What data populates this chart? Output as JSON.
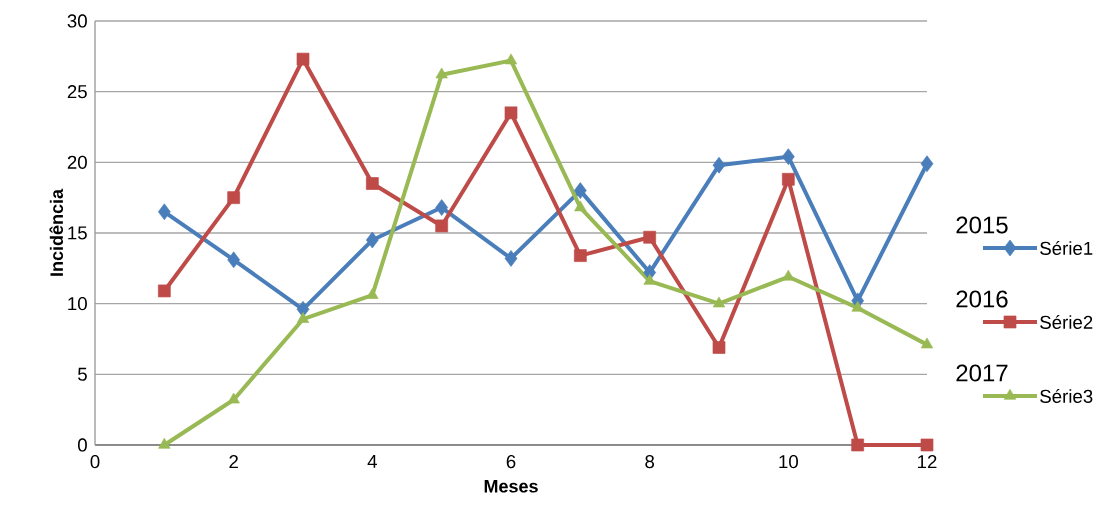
{
  "chart_data": {
    "type": "line",
    "xlabel": "Meses",
    "ylabel": "Incidência",
    "x": [
      1,
      2,
      3,
      4,
      5,
      6,
      7,
      8,
      9,
      10,
      11,
      12
    ],
    "xlim": [
      0,
      12
    ],
    "xticks": [
      0,
      2,
      4,
      6,
      8,
      10,
      12
    ],
    "ylim": [
      0,
      30
    ],
    "yticks": [
      0,
      5,
      10,
      15,
      20,
      25,
      30
    ],
    "grid": "y",
    "legend": "right",
    "line_style": "solid",
    "annotations": [
      "2015",
      "2016",
      "2017"
    ],
    "series": [
      {
        "name": "Série1",
        "color": "#4a7ebb",
        "marker": "diamond",
        "values": [
          16.5,
          13.1,
          9.6,
          14.5,
          16.8,
          13.2,
          18.0,
          12.2,
          19.8,
          20.4,
          10.2,
          19.9
        ]
      },
      {
        "name": "Série2",
        "color": "#be4b48",
        "marker": "square",
        "values": [
          10.9,
          17.5,
          27.3,
          18.5,
          15.5,
          23.5,
          13.4,
          14.7,
          6.9,
          18.8,
          0,
          0
        ]
      },
      {
        "name": "Série3",
        "color": "#98b954",
        "marker": "triangle",
        "values": [
          0,
          3.2,
          8.9,
          10.6,
          26.2,
          27.2,
          16.8,
          11.6,
          10.0,
          11.9,
          9.7,
          7.1
        ]
      }
    ]
  }
}
